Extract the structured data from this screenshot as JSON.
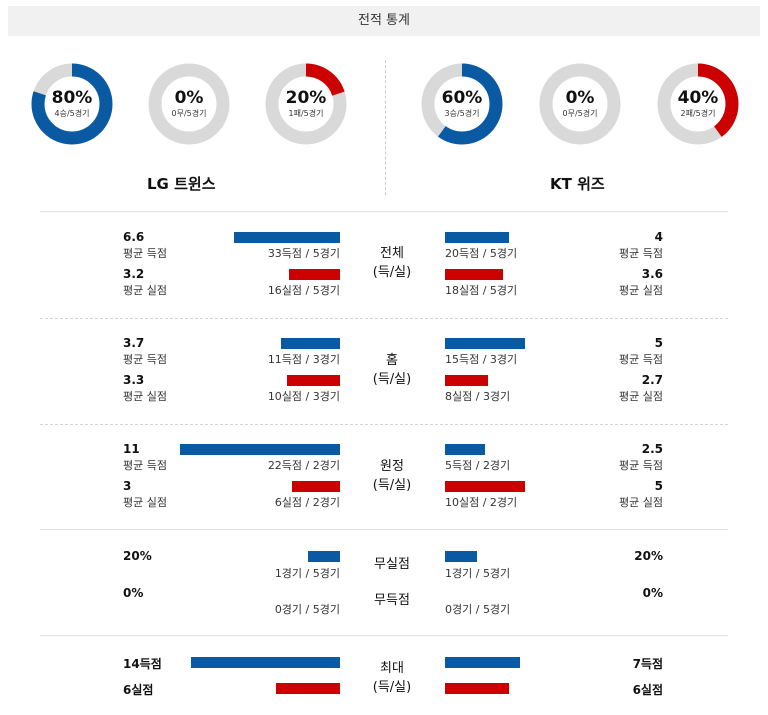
{
  "header": {
    "title": "전적 통계"
  },
  "colors": {
    "blue": "#0a5aa3",
    "red": "#cc0000",
    "ring": "#d9d9d9"
  },
  "donuts": {
    "lg": [
      {
        "pct": "80%",
        "sub": "4승/5경기",
        "value": 0.8,
        "color": "#0a5aa3"
      },
      {
        "pct": "0%",
        "sub": "0무/5경기",
        "value": 0,
        "color": "#0a5aa3"
      },
      {
        "pct": "20%",
        "sub": "1패/5경기",
        "value": 0.2,
        "color": "#cc0000"
      }
    ],
    "kt": [
      {
        "pct": "60%",
        "sub": "3승/5경기",
        "value": 0.6,
        "color": "#0a5aa3"
      },
      {
        "pct": "0%",
        "sub": "0무/5경기",
        "value": 0,
        "color": "#0a5aa3"
      },
      {
        "pct": "40%",
        "sub": "2패/5경기",
        "value": 0.4,
        "color": "#cc0000"
      }
    ]
  },
  "teams": {
    "lg": "LG 트윈스",
    "kt": "KT 위즈"
  },
  "sections": {
    "total": {
      "label1": "전체",
      "label2": "(득/실)",
      "lg_scored_avg": "6.6",
      "lg_scored_label": "평균 득점",
      "lg_scored_detail": "33득점 / 5경기",
      "lg_allowed_avg": "3.2",
      "lg_allowed_label": "평균 실점",
      "lg_allowed_detail": "16실점 / 5경기",
      "kt_scored_avg": "4",
      "kt_scored_label": "평균 득점",
      "kt_scored_detail": "20득점 / 5경기",
      "kt_allowed_avg": "3.6",
      "kt_allowed_label": "평균 실점",
      "kt_allowed_detail": "18실점 / 5경기"
    },
    "home": {
      "label1": "홈",
      "label2": "(득/실)",
      "lg_scored_avg": "3.7",
      "lg_scored_label": "평균 득점",
      "lg_scored_detail": "11득점 / 3경기",
      "lg_allowed_avg": "3.3",
      "lg_allowed_label": "평균 실점",
      "lg_allowed_detail": "10실점 / 3경기",
      "kt_scored_avg": "5",
      "kt_scored_label": "평균 득점",
      "kt_scored_detail": "15득점 / 3경기",
      "kt_allowed_avg": "2.7",
      "kt_allowed_label": "평균 실점",
      "kt_allowed_detail": "8실점 / 3경기"
    },
    "away": {
      "label1": "원정",
      "label2": "(득/실)",
      "lg_scored_avg": "11",
      "lg_scored_label": "평균 득점",
      "lg_scored_detail": "22득점 / 2경기",
      "lg_allowed_avg": "3",
      "lg_allowed_label": "평균 실점",
      "lg_allowed_detail": "6실점 / 2경기",
      "kt_scored_avg": "2.5",
      "kt_scored_label": "평균 득점",
      "kt_scored_detail": "5득점 / 2경기",
      "kt_allowed_avg": "5",
      "kt_allowed_label": "평균 실점",
      "kt_allowed_detail": "10실점 / 2경기"
    },
    "shutout": {
      "label_clean": "무실점",
      "label_noscore": "무득점",
      "lg_clean_pct": "20%",
      "lg_clean_detail": "1경기 / 5경기",
      "lg_noscore_pct": "0%",
      "lg_noscore_detail": "0경기 / 5경기",
      "kt_clean_pct": "20%",
      "kt_clean_detail": "1경기 / 5경기",
      "kt_noscore_pct": "0%",
      "kt_noscore_detail": "0경기 / 5경기"
    },
    "max": {
      "label1": "최대",
      "label2": "(득/실)",
      "lg_max_scored": "14득점",
      "lg_max_allowed": "6실점",
      "kt_max_scored": "7득점",
      "kt_max_allowed": "6실점"
    }
  }
}
